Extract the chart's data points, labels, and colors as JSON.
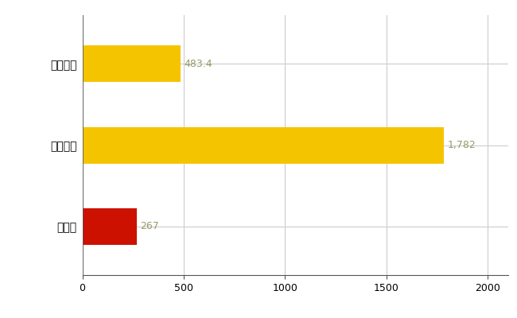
{
  "categories": [
    "全国平均",
    "全国最大",
    "福井県"
  ],
  "values": [
    483.4,
    1782,
    267
  ],
  "bar_colors": [
    "#F5C400",
    "#F5C400",
    "#CC1100"
  ],
  "label_texts": [
    "483.4",
    "1,782",
    "267"
  ],
  "label_color": "#999966",
  "xlim": [
    0,
    2100
  ],
  "xticks": [
    0,
    500,
    1000,
    1500,
    2000
  ],
  "background_color": "#ffffff",
  "grid_color": "#cccccc",
  "bar_height": 0.45,
  "figsize": [
    6.5,
    4.0
  ],
  "dpi": 100
}
